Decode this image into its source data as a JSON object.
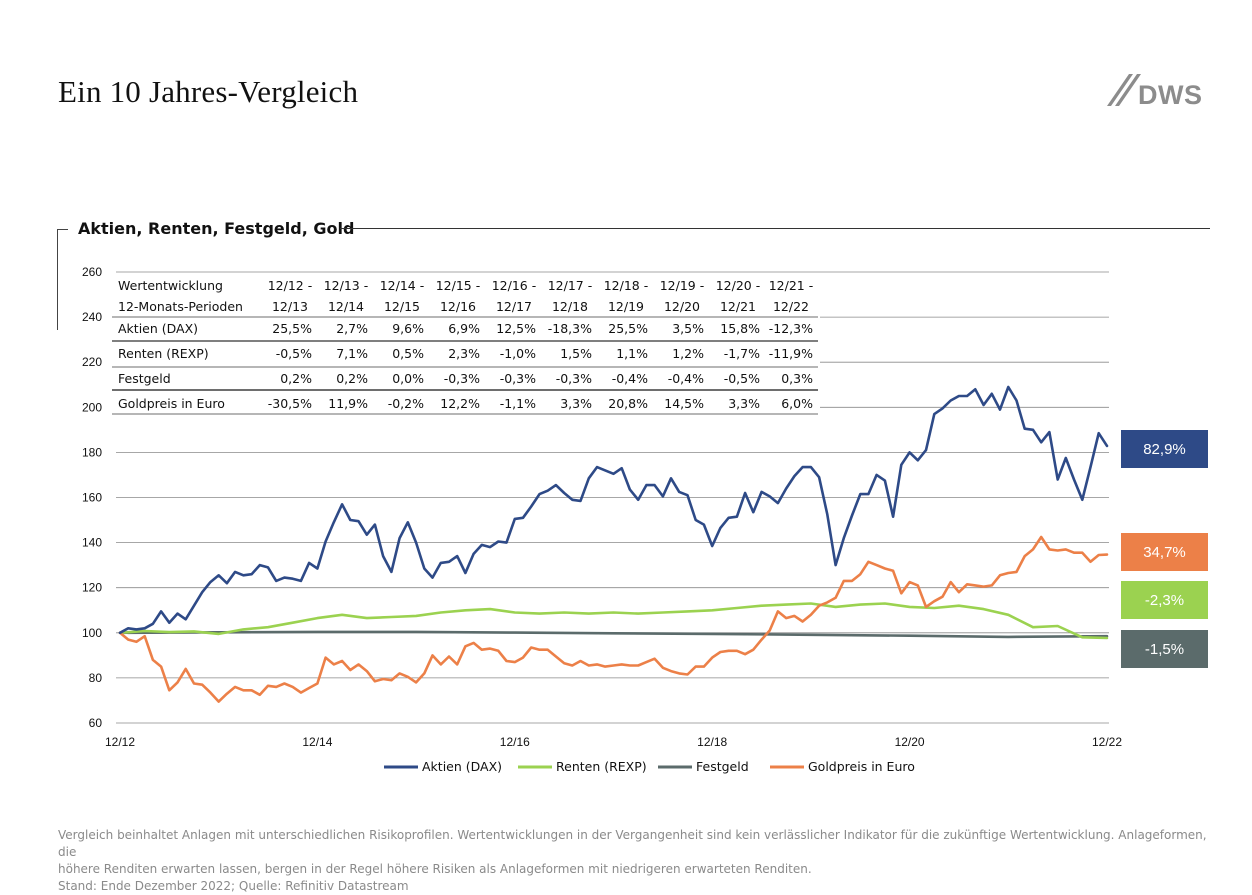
{
  "page": {
    "title": "Ein 10 Jahres-Vergleich",
    "logo_text": "DWS",
    "chart_title": "Aktien, Renten, Festgeld, Gold",
    "footnote": [
      "Vergleich beinhaltet Anlagen mit unterschiedlichen Risikoprofilen. Wertentwicklungen in der Vergangenheit sind kein verlässlicher Indikator für die zukünftige Wertentwicklung. Anlageformen, die",
      "höhere Renditen erwarten lassen, bergen in der Regel höhere Risiken als Anlageformen mit niedrigeren erwarteten Renditen.",
      "Stand: Ende Dezember 2022; Quelle: Refinitiv Datastream"
    ]
  },
  "table": {
    "header_label": [
      "Wertentwicklung",
      "12-Monats-Perioden"
    ],
    "periods": [
      [
        "12/12 -",
        "12/13"
      ],
      [
        "12/13 -",
        "12/14"
      ],
      [
        "12/14 -",
        "12/15"
      ],
      [
        "12/15 -",
        "12/16"
      ],
      [
        "12/16 -",
        "12/17"
      ],
      [
        "12/17 -",
        "12/18"
      ],
      [
        "12/18 -",
        "12/19"
      ],
      [
        "12/19 -",
        "12/20"
      ],
      [
        "12/20 -",
        "12/21"
      ],
      [
        "12/21 -",
        "12/22"
      ]
    ],
    "rows": [
      {
        "label": "Aktien (DAX)",
        "values": [
          "25,5%",
          "2,7%",
          "9,6%",
          "6,9%",
          "12,5%",
          "-18,3%",
          "25,5%",
          "3,5%",
          "15,8%",
          "-12,3%"
        ]
      },
      {
        "label": "Renten (REXP)",
        "values": [
          "-0,5%",
          "7,1%",
          "0,5%",
          "2,3%",
          "-1,0%",
          "1,5%",
          "1,1%",
          "1,2%",
          "-1,7%",
          "-11,9%"
        ]
      },
      {
        "label": "Festgeld",
        "values": [
          "0,2%",
          "0,2%",
          "0,0%",
          "-0,3%",
          "-0,3%",
          "-0,3%",
          "-0,4%",
          "-0,4%",
          "-0,5%",
          "0,3%"
        ]
      },
      {
        "label": "Goldpreis in Euro",
        "values": [
          "-30,5%",
          "11,9%",
          "-0,2%",
          "12,2%",
          "-1,1%",
          "3,3%",
          "20,8%",
          "14,5%",
          "3,3%",
          "6,0%"
        ]
      }
    ]
  },
  "badges": [
    {
      "series": "Aktien (DAX)",
      "text": "82,9%",
      "color": "#2e4a87"
    },
    {
      "series": "Goldpreis in Euro",
      "text": "34,7%",
      "color": "#ec8048"
    },
    {
      "series": "Renten (REXP)",
      "text": "-2,3%",
      "color": "#9bd250"
    },
    {
      "series": "Festgeld",
      "text": "-1,5%",
      "color": "#5b6b6b"
    }
  ],
  "chart_data": {
    "type": "line",
    "title": "Aktien, Renten, Festgeld, Gold",
    "xlabel": "",
    "ylabel": "",
    "ylim": [
      60,
      260
    ],
    "yticks": [
      60,
      80,
      100,
      120,
      140,
      160,
      180,
      200,
      220,
      240,
      260
    ],
    "xlim": [
      2012.917,
      2022.917
    ],
    "xticks": [
      {
        "x": 2012.917,
        "label": "12/12"
      },
      {
        "x": 2014.917,
        "label": "12/14"
      },
      {
        "x": 2016.917,
        "label": "12/16"
      },
      {
        "x": 2018.917,
        "label": "12/18"
      },
      {
        "x": 2020.917,
        "label": "12/20"
      },
      {
        "x": 2022.917,
        "label": "12/22"
      }
    ],
    "grid": true,
    "legend": "bottom",
    "series": [
      {
        "name": "Aktien (DAX)",
        "color": "#2e4a87",
        "x": [
          2012.917,
          2013.0,
          2013.083,
          2013.167,
          2013.25,
          2013.333,
          2013.417,
          2013.5,
          2013.583,
          2013.667,
          2013.75,
          2013.833,
          2013.917,
          2014.0,
          2014.083,
          2014.167,
          2014.25,
          2014.333,
          2014.417,
          2014.5,
          2014.583,
          2014.667,
          2014.75,
          2014.833,
          2014.917,
          2015.0,
          2015.083,
          2015.167,
          2015.25,
          2015.333,
          2015.417,
          2015.5,
          2015.583,
          2015.667,
          2015.75,
          2015.833,
          2015.917,
          2016.0,
          2016.083,
          2016.167,
          2016.25,
          2016.333,
          2016.417,
          2016.5,
          2016.583,
          2016.667,
          2016.75,
          2016.833,
          2016.917,
          2017.0,
          2017.083,
          2017.167,
          2017.25,
          2017.333,
          2017.417,
          2017.5,
          2017.583,
          2017.667,
          2017.75,
          2017.833,
          2017.917,
          2018.0,
          2018.083,
          2018.167,
          2018.25,
          2018.333,
          2018.417,
          2018.5,
          2018.583,
          2018.667,
          2018.75,
          2018.833,
          2018.917,
          2019.0,
          2019.083,
          2019.167,
          2019.25,
          2019.333,
          2019.417,
          2019.5,
          2019.583,
          2019.667,
          2019.75,
          2019.833,
          2019.917,
          2020.0,
          2020.083,
          2020.167,
          2020.25,
          2020.333,
          2020.417,
          2020.5,
          2020.583,
          2020.667,
          2020.75,
          2020.833,
          2020.917,
          2021.0,
          2021.083,
          2021.167,
          2021.25,
          2021.333,
          2021.417,
          2021.5,
          2021.583,
          2021.667,
          2021.75,
          2021.833,
          2021.917,
          2022.0,
          2022.083,
          2022.167,
          2022.25,
          2022.333,
          2022.417,
          2022.5,
          2022.583,
          2022.667,
          2022.75,
          2022.833,
          2022.917
        ],
        "y": [
          100,
          102,
          101.5,
          102,
          104,
          109.5,
          104.5,
          108.5,
          106,
          112,
          118,
          122.5,
          125.5,
          122,
          127,
          125.5,
          126,
          130,
          129,
          123,
          124.5,
          124,
          123,
          131,
          128.5,
          140.5,
          149,
          157,
          150,
          149.5,
          143.5,
          148,
          134,
          127,
          142,
          149,
          140,
          128.5,
          124.5,
          131,
          131.5,
          134,
          126.5,
          135,
          139,
          138,
          140.5,
          140,
          150.5,
          151,
          156,
          161.5,
          163,
          165.5,
          162,
          159,
          158.5,
          168.5,
          173.5,
          172,
          170.5,
          173,
          163.5,
          159,
          165.5,
          165.5,
          160.5,
          168.5,
          162.5,
          161,
          150,
          148,
          138.5,
          146.5,
          151,
          151.5,
          162,
          153.5,
          162.5,
          160.5,
          157.5,
          164,
          169.5,
          173.5,
          173.5,
          169,
          152.5,
          130,
          142,
          152,
          161.5,
          161.5,
          170,
          167.5,
          151.5,
          174.5,
          180,
          176.5,
          181,
          197,
          199.5,
          203,
          205,
          205,
          208,
          201,
          206,
          199,
          209,
          203,
          190.5,
          190,
          184.5,
          189,
          168,
          177.5,
          168,
          159,
          173.5,
          188.5,
          182.9
        ]
      },
      {
        "name": "Renten (REXP)",
        "color": "#9bd250",
        "x": [
          2012.917,
          2013.167,
          2013.417,
          2013.667,
          2013.917,
          2014.167,
          2014.417,
          2014.667,
          2014.917,
          2015.167,
          2015.417,
          2015.667,
          2015.917,
          2016.167,
          2016.417,
          2016.667,
          2016.917,
          2017.167,
          2017.417,
          2017.667,
          2017.917,
          2018.167,
          2018.417,
          2018.667,
          2018.917,
          2019.167,
          2019.417,
          2019.667,
          2019.917,
          2020.167,
          2020.417,
          2020.667,
          2020.917,
          2021.167,
          2021.417,
          2021.667,
          2021.917,
          2022.167,
          2022.417,
          2022.667,
          2022.917
        ],
        "y": [
          100,
          100.8,
          100.3,
          100.6,
          99.5,
          101.5,
          102.5,
          104.5,
          106.5,
          108,
          106.5,
          107,
          107.5,
          109,
          110,
          110.5,
          109,
          108.5,
          109,
          108.5,
          109,
          108.5,
          109,
          109.5,
          110,
          111,
          112,
          112.5,
          113,
          111.5,
          112.5,
          113,
          111.5,
          111,
          112,
          110.5,
          108,
          102.5,
          103,
          98,
          97.7
        ]
      },
      {
        "name": "Festgeld",
        "color": "#5b6b6b",
        "x": [
          2012.917,
          2013.917,
          2014.917,
          2015.917,
          2016.917,
          2017.917,
          2018.917,
          2019.917,
          2020.917,
          2021.917,
          2022.917
        ],
        "y": [
          100,
          100.2,
          100.4,
          100.4,
          100.1,
          99.8,
          99.5,
          99.1,
          98.7,
          98.2,
          98.5
        ]
      },
      {
        "name": "Goldpreis in Euro",
        "color": "#ec8048",
        "x": [
          2012.917,
          2013.0,
          2013.083,
          2013.167,
          2013.25,
          2013.333,
          2013.417,
          2013.5,
          2013.583,
          2013.667,
          2013.75,
          2013.833,
          2013.917,
          2014.0,
          2014.083,
          2014.167,
          2014.25,
          2014.333,
          2014.417,
          2014.5,
          2014.583,
          2014.667,
          2014.75,
          2014.833,
          2014.917,
          2015.0,
          2015.083,
          2015.167,
          2015.25,
          2015.333,
          2015.417,
          2015.5,
          2015.583,
          2015.667,
          2015.75,
          2015.833,
          2015.917,
          2016.0,
          2016.083,
          2016.167,
          2016.25,
          2016.333,
          2016.417,
          2016.5,
          2016.583,
          2016.667,
          2016.75,
          2016.833,
          2016.917,
          2017.0,
          2017.083,
          2017.167,
          2017.25,
          2017.333,
          2017.417,
          2017.5,
          2017.583,
          2017.667,
          2017.75,
          2017.833,
          2017.917,
          2018.0,
          2018.083,
          2018.167,
          2018.25,
          2018.333,
          2018.417,
          2018.5,
          2018.583,
          2018.667,
          2018.75,
          2018.833,
          2018.917,
          2019.0,
          2019.083,
          2019.167,
          2019.25,
          2019.333,
          2019.417,
          2019.5,
          2019.583,
          2019.667,
          2019.75,
          2019.833,
          2019.917,
          2020.0,
          2020.083,
          2020.167,
          2020.25,
          2020.333,
          2020.417,
          2020.5,
          2020.583,
          2020.667,
          2020.75,
          2020.833,
          2020.917,
          2021.0,
          2021.083,
          2021.167,
          2021.25,
          2021.333,
          2021.417,
          2021.5,
          2021.583,
          2021.667,
          2021.75,
          2021.833,
          2021.917,
          2022.0,
          2022.083,
          2022.167,
          2022.25,
          2022.333,
          2022.417,
          2022.5,
          2022.583,
          2022.667,
          2022.75,
          2022.833,
          2022.917
        ],
        "y": [
          100,
          97,
          96,
          98.5,
          88,
          85,
          74.5,
          78,
          84,
          77.5,
          77,
          73.5,
          69.5,
          73,
          76,
          74.5,
          74.5,
          72.5,
          76.5,
          76,
          77.5,
          76,
          73.5,
          75.5,
          77.5,
          89,
          86,
          87.5,
          83.5,
          86,
          83,
          78.5,
          79.5,
          79,
          82,
          80.5,
          78,
          82,
          90,
          86,
          89.5,
          86,
          94,
          95.5,
          92.5,
          93,
          92,
          87.5,
          87,
          89,
          93.5,
          92.5,
          92.5,
          89.5,
          86.5,
          85.5,
          87.5,
          85.5,
          86,
          85,
          85.5,
          86,
          85.5,
          85.5,
          87,
          88.5,
          84.5,
          83,
          82,
          81.5,
          85,
          85,
          89,
          91.5,
          92,
          92,
          90.5,
          92.5,
          97,
          101,
          109.5,
          106.5,
          107.5,
          105,
          108,
          112,
          113.5,
          115.5,
          123,
          123,
          126,
          131.5,
          130,
          128.5,
          127.5,
          117.5,
          122.5,
          121,
          111.5,
          114,
          116,
          122.5,
          118,
          121.5,
          121,
          120.5,
          121,
          125.5,
          126.5,
          127,
          134,
          137,
          142.5,
          137,
          136.5,
          137,
          135.5,
          135.5,
          131.5,
          134.5,
          134.7
        ]
      }
    ]
  }
}
